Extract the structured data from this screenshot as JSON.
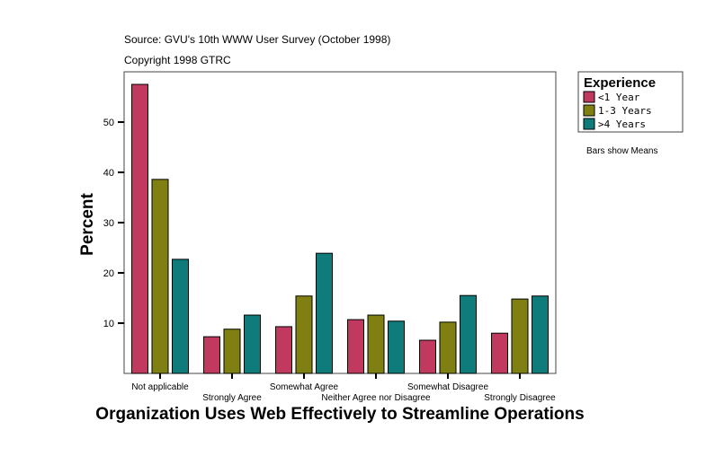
{
  "chart_data": {
    "type": "bar",
    "source_note": "Source: GVU's 10th WWW User Survey (October 1998)",
    "copyright_note": "Copyright 1998 GTRC",
    "xlabel": "Organization Uses Web Effectively to Streamline Operations",
    "ylabel": "Percent",
    "categories": [
      "Not applicable",
      "Strongly Agree",
      "Somewhat Agree",
      "Neither Agree nor Disagree",
      "Somewhat Disagree",
      "Strongly Disagree"
    ],
    "yticks": [
      10,
      20,
      30,
      40,
      50
    ],
    "ylim": [
      0,
      59.8
    ],
    "grid": false,
    "legend": {
      "title": "Experience",
      "placement": "right"
    },
    "footnote": "Bars show Means",
    "series": [
      {
        "name": "<1 Year",
        "color": "#c0395f",
        "values": [
          57.5,
          7.3,
          9.3,
          10.7,
          6.6,
          8.0
        ]
      },
      {
        "name": "1-3 Years",
        "color": "#808012",
        "values": [
          38.6,
          8.8,
          15.4,
          11.6,
          10.2,
          14.8
        ]
      },
      {
        "name": ">4 Years",
        "color": "#0f7b7b",
        "values": [
          22.7,
          11.6,
          23.9,
          10.4,
          15.5,
          15.4
        ]
      }
    ]
  }
}
